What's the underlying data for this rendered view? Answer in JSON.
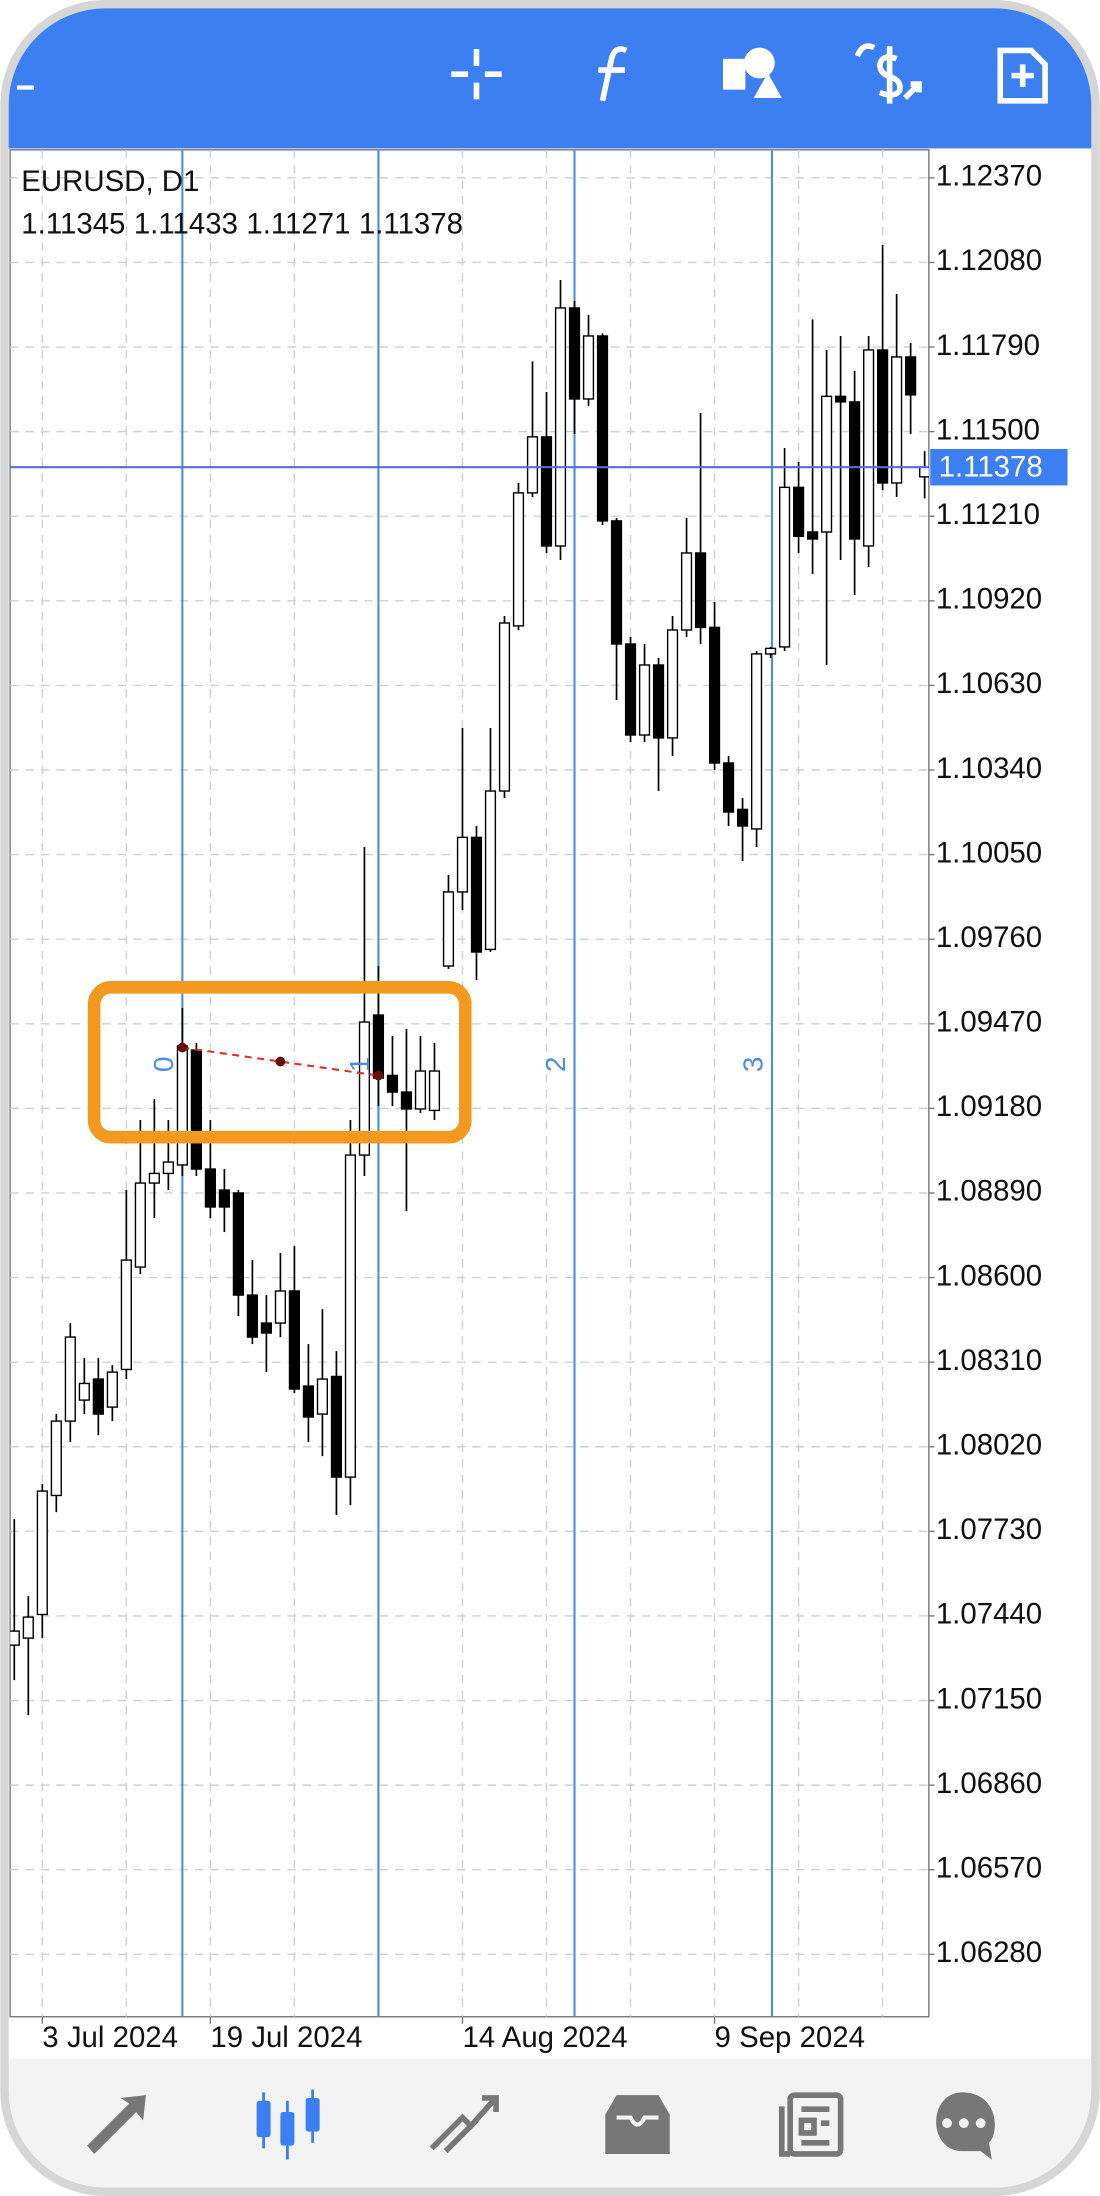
{
  "chart_data": {
    "type": "candlestick",
    "title": "EURUSD, D1",
    "categories": [
      null,
      null,
      "3 Jul 2024",
      null,
      null,
      null,
      null,
      null,
      null,
      null,
      null,
      null,
      null,
      null,
      "19 Jul 2024",
      null,
      null,
      null,
      null,
      null,
      null,
      null,
      null,
      null,
      null,
      null,
      null,
      null,
      null,
      null,
      null,
      null,
      "14 Aug 2024",
      null,
      null,
      null,
      null,
      null,
      null,
      null,
      null,
      null,
      null,
      null,
      null,
      null,
      null,
      null,
      null,
      null,
      "9 Sep 2024",
      null,
      null,
      null,
      null,
      null,
      null,
      null,
      null,
      null,
      null,
      null,
      null,
      null,
      null,
      null
    ],
    "open": [
      1.0734,
      1.07364,
      1.07445,
      1.07853,
      1.08108,
      1.0818,
      1.08252,
      1.08156,
      1.08285,
      1.08636,
      1.08924,
      1.08957,
      1.08986,
      1.0938,
      1.08972,
      1.089,
      1.0889,
      1.0854,
      1.08444,
      1.08444,
      1.08554,
      1.08228,
      1.08132,
      1.08261,
      1.07916,
      1.0902,
      1.095,
      1.09293,
      1.09236,
      1.09178,
      1.09173,
      1.09668,
      1.09922,
      1.10109,
      1.09725,
      1.10268,
      1.10834,
      1.1129,
      1.11482,
      1.11108,
      1.11924,
      1.11612,
      1.11828,
      1.11194,
      1.10772,
      1.1046,
      1.107,
      1.1045,
      1.1082,
      1.11084,
      1.10829,
      1.10364,
      1.10205,
      1.10138,
      1.10738,
      1.10762,
      1.11309,
      1.11156,
      1.11156,
      1.11621,
      1.11602,
      1.11108,
      1.1178,
      1.11324,
      1.11756,
      1.11345
    ],
    "high": [
      1.07772,
      1.07508,
      1.07892,
      1.08132,
      1.08444,
      1.08324,
      1.08324,
      1.083,
      1.089,
      1.0914,
      1.09212,
      1.0914,
      1.09524,
      1.09404,
      1.0914,
      1.08972,
      1.089,
      1.0866,
      1.0854,
      1.08684,
      1.08708,
      1.08372,
      1.08492,
      1.08348,
      1.0914,
      1.10076,
      1.09668,
      1.09428,
      1.09452,
      1.09428,
      1.09404,
      1.0998,
      1.10484,
      1.10148,
      1.10484,
      1.10868,
      1.11324,
      1.11741,
      1.11636,
      1.1202,
      1.11948,
      1.119,
      1.11837,
      1.11204,
      1.10796,
      1.10772,
      1.10724,
      1.10868,
      1.11204,
      1.11564,
      1.10916,
      1.10388,
      1.10244,
      1.10748,
      1.10762,
      1.11444,
      1.11396,
      1.11885,
      1.1178,
      1.11828,
      1.11708,
      1.11828,
      1.1214,
      1.11972,
      1.11804,
      1.11433
    ],
    "low": [
      1.0722,
      1.071,
      1.07364,
      1.07796,
      1.08036,
      1.08132,
      1.0806,
      1.08108,
      1.08252,
      1.08612,
      1.08804,
      1.089,
      1.08948,
      1.08948,
      1.08804,
      1.08756,
      1.08468,
      1.08372,
      1.08276,
      1.08396,
      1.08204,
      1.08036,
      1.07988,
      1.07786,
      1.0782,
      1.08948,
      1.09188,
      1.09188,
      1.08828,
      1.09164,
      1.0914,
      1.09658,
      1.0986,
      1.0962,
      1.09716,
      1.10244,
      1.1082,
      1.11276,
      1.11084,
      1.1106,
      1.11492,
      1.11588,
      1.1118,
      1.1058,
      1.10436,
      1.10436,
      1.10268,
      1.10388,
      1.10796,
      1.10772,
      1.1034,
      1.10148,
      1.10028,
      1.10076,
      1.10724,
      1.10748,
      1.11084,
      1.11012,
      1.107,
      1.1106,
      1.1094,
      1.11036,
      1.113,
      1.11276,
      1.11492,
      1.11271
    ],
    "close": [
      1.07388,
      1.07436,
      1.07868,
      1.08108,
      1.08396,
      1.08237,
      1.08132,
      1.08276,
      1.0866,
      1.08924,
      1.08957,
      1.08996,
      1.09394,
      1.08972,
      1.08842,
      1.08842,
      1.0854,
      1.08396,
      1.0841,
      1.08554,
      1.08218,
      1.08122,
      1.08252,
      1.07916,
      1.0902,
      1.09476,
      1.09284,
      1.09236,
      1.09178,
      1.09308,
      1.09308,
      1.09922,
      1.10109,
      1.09716,
      1.10268,
      1.10844,
      1.1129,
      1.11482,
      1.11108,
      1.11924,
      1.11612,
      1.11828,
      1.11194,
      1.10772,
      1.1046,
      1.107,
      1.1045,
      1.1082,
      1.11084,
      1.10829,
      1.10364,
      1.10196,
      1.10148,
      1.10738,
      1.10757,
      1.11309,
      1.11141,
      1.11132,
      1.11621,
      1.11602,
      1.11132,
      1.1178,
      1.11324,
      1.11756,
      1.11626,
      1.11378
    ],
    "ylim": [
      1.06066,
      1.12466
    ],
    "yticks": [
      {
        "value": 1.1237,
        "label": "1.12370"
      },
      {
        "value": 1.1208,
        "label": "1.12080"
      },
      {
        "value": 1.1179,
        "label": "1.11790"
      },
      {
        "value": 1.115,
        "label": "1.11500"
      },
      {
        "value": 1.1121,
        "label": "1.11210"
      },
      {
        "value": 1.1092,
        "label": "1.10920"
      },
      {
        "value": 1.1063,
        "label": "1.10630"
      },
      {
        "value": 1.1034,
        "label": "1.10340"
      },
      {
        "value": 1.1005,
        "label": "1.10050"
      },
      {
        "value": 1.0976,
        "label": "1.09760"
      },
      {
        "value": 1.0947,
        "label": "1.09470"
      },
      {
        "value": 1.0918,
        "label": "1.09180"
      },
      {
        "value": 1.0889,
        "label": "1.08890"
      },
      {
        "value": 1.086,
        "label": "1.08600"
      },
      {
        "value": 1.0831,
        "label": "1.08310"
      },
      {
        "value": 1.0802,
        "label": "1.08020"
      },
      {
        "value": 1.0773,
        "label": "1.07730"
      },
      {
        "value": 1.0744,
        "label": "1.07440"
      },
      {
        "value": 1.0715,
        "label": "1.07150"
      },
      {
        "value": 1.0686,
        "label": "1.06860"
      },
      {
        "value": 1.0657,
        "label": "1.06570"
      },
      {
        "value": 1.0628,
        "label": "1.06280"
      }
    ],
    "grid": true,
    "up_color": "#ffffff",
    "down_color": "#000000",
    "price_line_color": "#5a6cd8",
    "cycle_labels": [
      "0",
      "1",
      "2",
      "3"
    ]
  }
}
